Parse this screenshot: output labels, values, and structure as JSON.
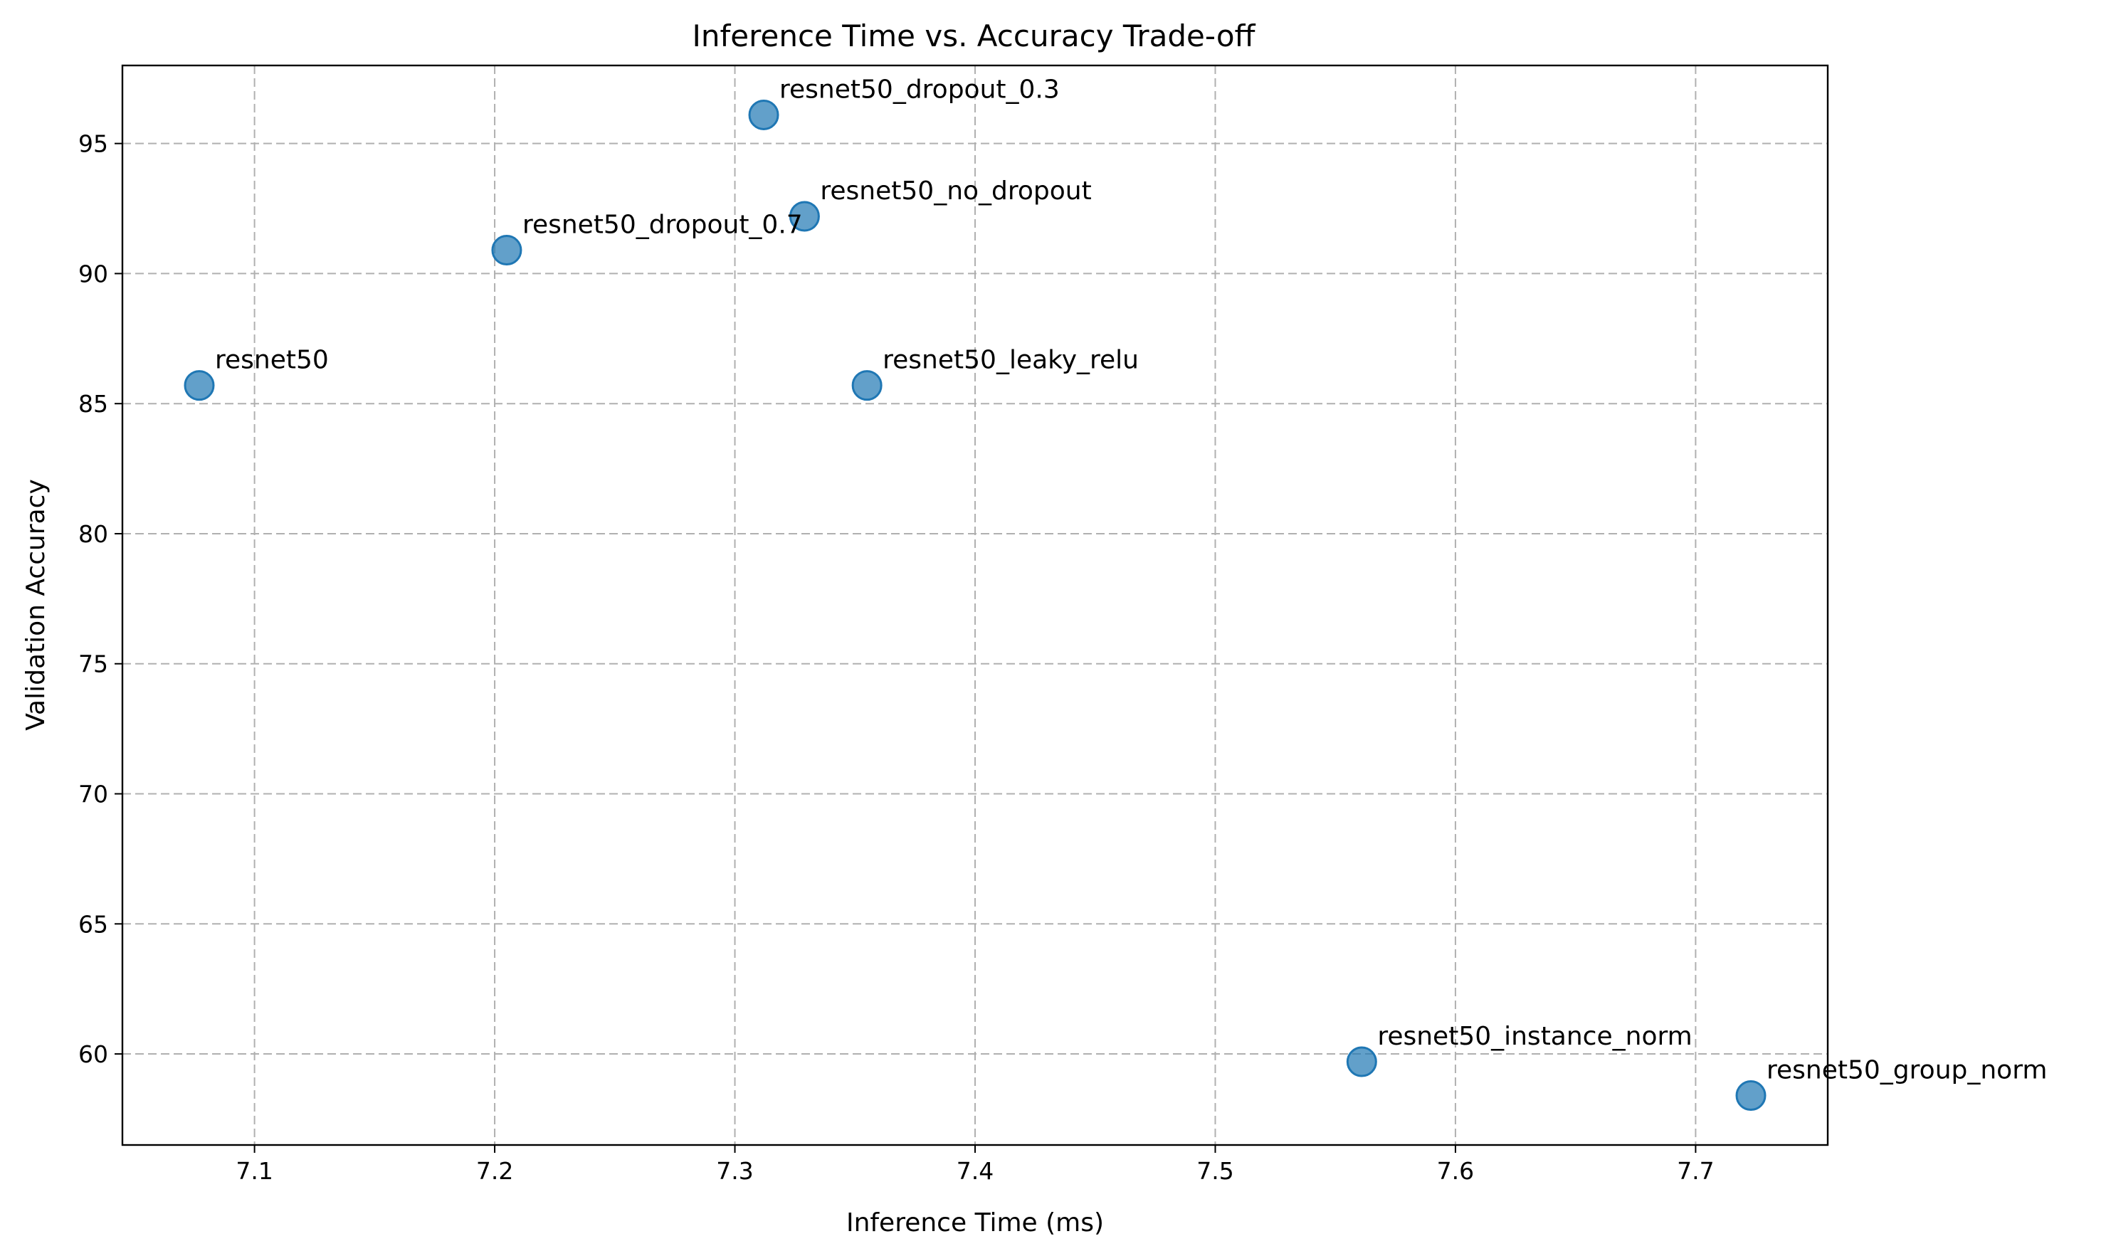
{
  "chart_data": {
    "type": "scatter",
    "title": "Inference Time vs. Accuracy Trade-off",
    "xlabel": "Inference Time (ms)",
    "ylabel": "Validation Accuracy",
    "xlim": [
      7.045,
      7.755
    ],
    "ylim": [
      56.5,
      98.0
    ],
    "xticks": [
      7.1,
      7.2,
      7.3,
      7.4,
      7.5,
      7.6,
      7.7
    ],
    "yticks": [
      60,
      65,
      70,
      75,
      80,
      85,
      90,
      95
    ],
    "grid": true,
    "point_color": "#1f77b4",
    "points": [
      {
        "name": "resnet50",
        "x": 7.077,
        "y": 85.7
      },
      {
        "name": "resnet50_dropout_0.7",
        "x": 7.205,
        "y": 90.9
      },
      {
        "name": "resnet50_dropout_0.3",
        "x": 7.312,
        "y": 96.1
      },
      {
        "name": "resnet50_no_dropout",
        "x": 7.329,
        "y": 92.2
      },
      {
        "name": "resnet50_leaky_relu",
        "x": 7.355,
        "y": 85.7
      },
      {
        "name": "resnet50_instance_norm",
        "x": 7.561,
        "y": 59.7
      },
      {
        "name": "resnet50_group_norm",
        "x": 7.723,
        "y": 58.4
      }
    ]
  }
}
